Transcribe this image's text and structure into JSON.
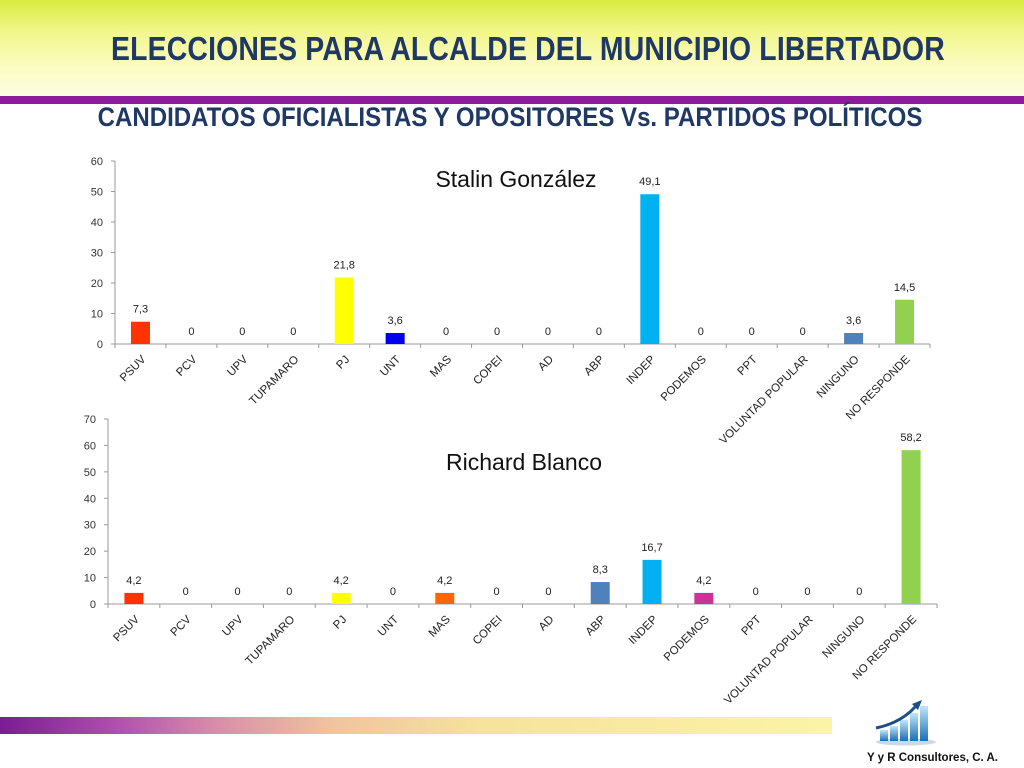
{
  "header": {
    "title": "ELECCIONES PARA ALCALDE DEL MUNICIPIO LIBERTADOR",
    "subtitle": "CANDIDATOS OFICIALISTAS Y OPOSITORES Vs. PARTIDOS POLÍTICOS"
  },
  "footer": {
    "company": "Y y R Consultores, C. A."
  },
  "chart_data": [
    {
      "type": "bar",
      "title": "Stalin González",
      "categories": [
        "PSUV",
        "PCV",
        "UPV",
        "TUPAMARO",
        "PJ",
        "UNT",
        "MAS",
        "COPEI",
        "AD",
        "ABP",
        "INDEP",
        "PODEMOS",
        "PPT",
        "VOLUNTAD POPULAR",
        "NINGUNO",
        "NO RESPONDE"
      ],
      "values": [
        7.3,
        0,
        0,
        0,
        21.8,
        3.6,
        0,
        0,
        0,
        0,
        49.1,
        0,
        0,
        0,
        3.6,
        14.5
      ],
      "labels": [
        "7,3",
        "0",
        "0",
        "0",
        "21,8",
        "3,6",
        "0",
        "0",
        "0",
        "0",
        "49,1",
        "0",
        "0",
        "0",
        "3,6",
        "14,5"
      ],
      "colors": [
        "#ff3300",
        "#ff3300",
        "#ff3300",
        "#ff3300",
        "#ffff00",
        "#0000ee",
        "#ff6600",
        "#ff6600",
        "#ff6600",
        "#ff6600",
        "#00b0f0",
        "#ff6600",
        "#ff6600",
        "#ff6600",
        "#4f81bd",
        "#92d050"
      ],
      "ylim": [
        0,
        60
      ],
      "yticks": [
        0,
        10,
        20,
        30,
        40,
        50,
        60
      ],
      "grid": false
    },
    {
      "type": "bar",
      "title": "Richard Blanco",
      "categories": [
        "PSUV",
        "PCV",
        "UPV",
        "TUPAMARO",
        "PJ",
        "UNT",
        "MAS",
        "COPEI",
        "AD",
        "ABP",
        "INDEP",
        "PODEMOS",
        "PPT",
        "VOLUNTAD POPULAR",
        "NINGUNO",
        "NO RESPONDE"
      ],
      "values": [
        4.2,
        0,
        0,
        0,
        4.2,
        0,
        4.2,
        0,
        0,
        8.3,
        16.7,
        4.2,
        0,
        0,
        0,
        58.2
      ],
      "labels": [
        "4,2",
        "0",
        "0",
        "0",
        "4,2",
        "0",
        "4,2",
        "0",
        "0",
        "8,3",
        "16,7",
        "4,2",
        "0",
        "0",
        "0",
        "58,2"
      ],
      "colors": [
        "#ff3300",
        "#ff3300",
        "#ff3300",
        "#ff3300",
        "#ffff00",
        "#0000ee",
        "#ff6600",
        "#ff6600",
        "#ff6600",
        "#4f81bd",
        "#00b0f0",
        "#cc3399",
        "#ff6600",
        "#ff6600",
        "#4f81bd",
        "#92d050"
      ],
      "ylim": [
        0,
        70
      ],
      "yticks": [
        0,
        10,
        20,
        30,
        40,
        50,
        60,
        70
      ],
      "grid": false
    }
  ]
}
